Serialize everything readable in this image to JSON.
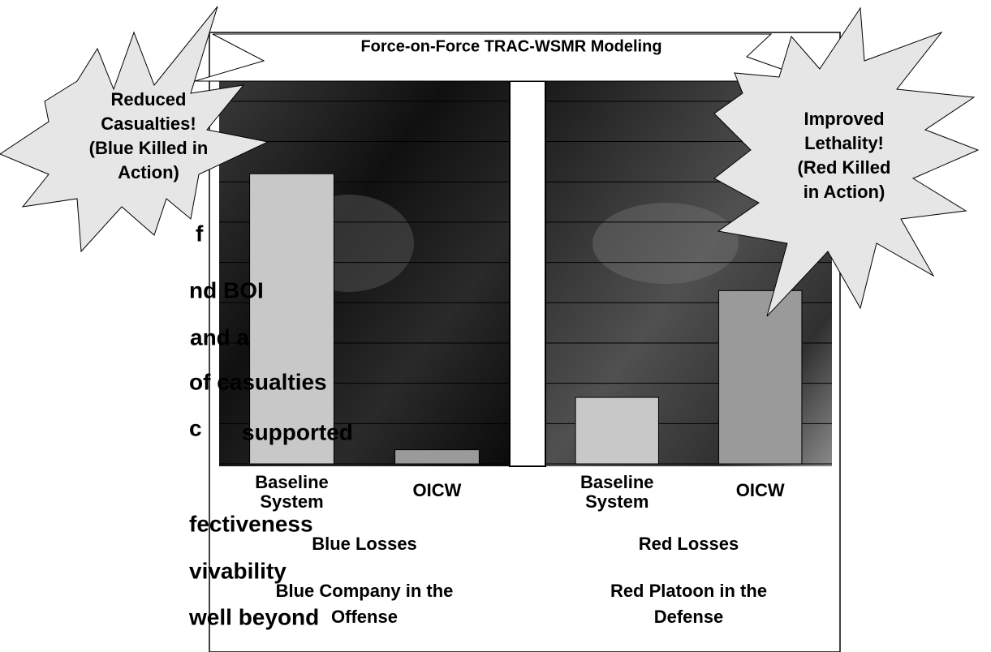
{
  "title": "Force-on-Force TRAC-WSMR Modeling",
  "body_text": [
    "f",
    "nd BOI",
    " and a",
    "of casualties",
    "c",
    "fectiveness",
    "vivability",
    " well beyond"
  ],
  "overlay_text": "supported",
  "callouts": [
    {
      "lines": [
        "Reduced",
        "Casualties!",
        "(Blue Killed in",
        "Action)"
      ]
    },
    {
      "lines": [
        "Improved",
        "Lethality!",
        "(Red Killed",
        "in Action)"
      ]
    }
  ],
  "chart_data": [
    {
      "type": "bar",
      "categories": [
        "Baseline System",
        "OICW"
      ],
      "values": [
        7.2,
        0.35
      ],
      "colors": [
        "#c8c8c8",
        "#9a9a9a"
      ],
      "xlabel": "Blue Losses",
      "subtitle": "Blue Company in the Offense",
      "ylim": [
        0,
        9.5
      ],
      "yticks": [
        1,
        2,
        3,
        4,
        5,
        6,
        7,
        8,
        9
      ],
      "grid": true
    },
    {
      "type": "bar",
      "categories": [
        "Baseline System",
        "OICW"
      ],
      "values": [
        1.65,
        4.3
      ],
      "colors": [
        "#c8c8c8",
        "#9a9a9a"
      ],
      "xlabel": "Red Losses",
      "subtitle": "Red Platoon in the Defense",
      "ylim": [
        0,
        9.5
      ],
      "yticks": [
        1,
        2,
        3,
        4,
        5,
        6,
        7,
        8,
        9
      ],
      "grid": true
    }
  ]
}
